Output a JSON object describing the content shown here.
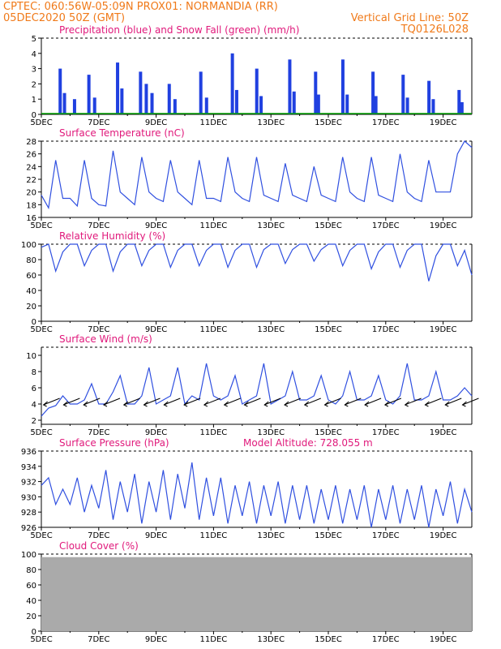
{
  "header": {
    "line1_left": "CPTEC:   060:56W-05:09N   PROX01: NORMANDIA (RR)",
    "line2_left": "05DEC2020 50Z (GMT)",
    "line2_right": "Vertical Grid Line: 50Z",
    "line3_right": "TQ0126L028"
  },
  "colors": {
    "header": "#f07a1a",
    "title": "#e0197b",
    "precip": "#2040e0",
    "snow": "#00a000",
    "line": "#3050e0",
    "wind_arrow": "#000000",
    "cloud": "#aaaaaa"
  },
  "x_axis": {
    "tick_labels": [
      "5DEC",
      "7DEC",
      "9DEC",
      "11DEC",
      "13DEC",
      "15DEC",
      "17DEC",
      "19DEC"
    ]
  },
  "panels": {
    "precip": {
      "title": "Precipitation (blue) and Snow Fall (green) (mm/h)",
      "y_ticks": [
        "0",
        "1",
        "2",
        "3",
        "4",
        "5"
      ]
    },
    "temp": {
      "title": "Surface Temperature (nC)",
      "y_ticks": [
        "16",
        "18",
        "20",
        "22",
        "24",
        "26",
        "28"
      ]
    },
    "rh": {
      "title": "Relative Humidity (%)",
      "y_ticks": [
        "0",
        "20",
        "40",
        "60",
        "80",
        "100"
      ]
    },
    "wind": {
      "title": "Surface Wind (m/s)",
      "y_ticks": [
        "2",
        "4",
        "6",
        "8",
        "10"
      ]
    },
    "pres": {
      "title": "Surface Pressure (hPa)",
      "extra": "Model Altitude: 728.055 m",
      "y_ticks": [
        "926",
        "928",
        "930",
        "932",
        "934",
        "936"
      ]
    },
    "cloud": {
      "title": "Cloud Cover (%)",
      "y_ticks": [
        "0",
        "20",
        "40",
        "60",
        "80",
        "100"
      ]
    }
  },
  "chart_data": [
    {
      "type": "bar",
      "title": "Precipitation (blue) and Snow Fall (green) (mm/h)",
      "x_unit": "days since 5DEC 00Z",
      "x": [
        0.6,
        0.75,
        1.1,
        1.6,
        1.8,
        2.6,
        2.75,
        3.4,
        3.6,
        3.8,
        4.4,
        4.6,
        5.5,
        5.7,
        6.6,
        6.75,
        7.45,
        7.6,
        8.6,
        8.75,
        9.5,
        9.6,
        10.45,
        10.6,
        11.5,
        11.6,
        12.55,
        12.7,
        13.45,
        13.6,
        14.5,
        14.6
      ],
      "values": [
        3.0,
        1.4,
        1.0,
        2.6,
        1.1,
        3.4,
        1.7,
        2.8,
        2.0,
        1.4,
        2.0,
        1.0,
        2.8,
        1.1,
        4.0,
        1.6,
        3.0,
        1.2,
        3.6,
        1.5,
        2.8,
        1.3,
        3.6,
        1.3,
        2.8,
        1.2,
        2.6,
        1.1,
        2.2,
        1.0,
        1.6,
        0.8
      ],
      "snow": 0,
      "ylim": [
        0,
        5
      ]
    },
    {
      "type": "line",
      "title": "Surface Temperature (nC)",
      "x_unit": "days since 5DEC 00Z",
      "x": [
        0,
        0.25,
        0.5,
        0.75,
        1,
        1.25,
        1.5,
        1.75,
        2,
        2.25,
        2.5,
        2.75,
        3,
        3.25,
        3.5,
        3.75,
        4,
        4.25,
        4.5,
        4.75,
        5,
        5.25,
        5.5,
        5.75,
        6,
        6.25,
        6.5,
        6.75,
        7,
        7.25,
        7.5,
        7.75,
        8,
        8.25,
        8.5,
        8.75,
        9,
        9.25,
        9.5,
        9.75,
        10,
        10.25,
        10.5,
        10.75,
        11,
        11.25,
        11.5,
        11.75,
        12,
        12.25,
        12.5,
        12.75,
        13,
        13.25,
        13.5,
        13.75,
        14,
        14.25,
        14.5,
        14.75,
        15
      ],
      "y": [
        19.5,
        17.5,
        25,
        19,
        19,
        17.8,
        25,
        19,
        18,
        17.8,
        26.5,
        20,
        19,
        18,
        25.5,
        20,
        19,
        18.5,
        25,
        20,
        19,
        18,
        25,
        19,
        19,
        18.5,
        25.5,
        20,
        19,
        18.5,
        25.5,
        19.5,
        19,
        18.5,
        24.5,
        19.5,
        19,
        18.5,
        24,
        19.5,
        19,
        18.5,
        25.5,
        20,
        19,
        18.5,
        25.5,
        19.5,
        19,
        18.5,
        26,
        20,
        19,
        18.5,
        25,
        20,
        20,
        20,
        26,
        28,
        27
      ],
      "ylim": [
        16,
        28
      ]
    },
    {
      "type": "line",
      "title": "Relative Humidity (%)",
      "x_unit": "days since 5DEC 00Z",
      "x": [
        0,
        0.25,
        0.5,
        0.75,
        1,
        1.25,
        1.5,
        1.75,
        2,
        2.25,
        2.5,
        2.75,
        3,
        3.25,
        3.5,
        3.75,
        4,
        4.25,
        4.5,
        4.75,
        5,
        5.25,
        5.5,
        5.75,
        6,
        6.25,
        6.5,
        6.75,
        7,
        7.25,
        7.5,
        7.75,
        8,
        8.25,
        8.5,
        8.75,
        9,
        9.25,
        9.5,
        9.75,
        10,
        10.25,
        10.5,
        10.75,
        11,
        11.25,
        11.5,
        11.75,
        12,
        12.25,
        12.5,
        12.75,
        13,
        13.25,
        13.5,
        13.75,
        14,
        14.25,
        14.5,
        14.75,
        15
      ],
      "y": [
        96,
        100,
        65,
        90,
        100,
        100,
        72,
        92,
        100,
        100,
        65,
        90,
        100,
        100,
        72,
        92,
        100,
        100,
        70,
        92,
        100,
        100,
        72,
        92,
        100,
        100,
        70,
        92,
        100,
        100,
        70,
        93,
        100,
        100,
        75,
        93,
        100,
        100,
        78,
        93,
        100,
        100,
        72,
        92,
        100,
        100,
        68,
        90,
        100,
        100,
        70,
        92,
        100,
        100,
        52,
        85,
        100,
        100,
        72,
        92,
        60
      ],
      "ylim": [
        0,
        100
      ]
    },
    {
      "type": "line",
      "title": "Surface Wind (m/s)",
      "x_unit": "days since 5DEC 00Z",
      "x": [
        0,
        0.25,
        0.5,
        0.75,
        1,
        1.25,
        1.5,
        1.75,
        2,
        2.25,
        2.5,
        2.75,
        3,
        3.25,
        3.5,
        3.75,
        4,
        4.25,
        4.5,
        4.75,
        5,
        5.25,
        5.5,
        5.75,
        6,
        6.25,
        6.5,
        6.75,
        7,
        7.25,
        7.5,
        7.75,
        8,
        8.25,
        8.5,
        8.75,
        9,
        9.25,
        9.5,
        9.75,
        10,
        10.25,
        10.5,
        10.75,
        11,
        11.25,
        11.5,
        11.75,
        12,
        12.25,
        12.5,
        12.75,
        13,
        13.25,
        13.5,
        13.75,
        14,
        14.25,
        14.5,
        14.75,
        15
      ],
      "y": [
        2.5,
        3.5,
        3.8,
        5,
        4,
        4,
        4.5,
        6.5,
        4,
        4,
        5.5,
        7.5,
        4,
        4,
        5,
        8.5,
        4,
        4.5,
        5,
        8.5,
        4,
        5,
        4.5,
        9,
        5,
        4.5,
        5,
        7.5,
        4,
        4.5,
        5,
        9,
        4,
        4.5,
        5,
        8,
        4.5,
        4.5,
        5,
        7.5,
        4.5,
        4,
        5,
        8,
        4.5,
        4.5,
        5,
        7.5,
        4.5,
        4,
        5,
        9,
        4.5,
        4.5,
        5,
        8,
        4.5,
        4.5,
        5,
        6,
        5
      ],
      "ylim": [
        1.5,
        11
      ],
      "arrows_x": [
        0.3,
        1.0,
        1.7,
        2.4,
        3.1,
        3.8,
        4.5,
        5.2,
        5.9,
        6.6,
        7.3,
        8.0,
        8.7,
        9.4,
        10.1,
        10.8,
        11.5,
        12.2,
        12.9,
        13.6,
        14.3,
        14.9
      ]
    },
    {
      "type": "line",
      "title": "Surface Pressure (hPa)",
      "x_unit": "days since 5DEC 00Z",
      "x": [
        0,
        0.25,
        0.5,
        0.75,
        1,
        1.25,
        1.5,
        1.75,
        2,
        2.25,
        2.5,
        2.75,
        3,
        3.25,
        3.5,
        3.75,
        4,
        4.25,
        4.5,
        4.75,
        5,
        5.25,
        5.5,
        5.75,
        6,
        6.25,
        6.5,
        6.75,
        7,
        7.25,
        7.5,
        7.75,
        8,
        8.25,
        8.5,
        8.75,
        9,
        9.25,
        9.5,
        9.75,
        10,
        10.25,
        10.5,
        10.75,
        11,
        11.25,
        11.5,
        11.75,
        12,
        12.25,
        12.5,
        12.75,
        13,
        13.25,
        13.5,
        13.75,
        14,
        14.25,
        14.5,
        14.75,
        15
      ],
      "y": [
        931.5,
        932.5,
        929,
        931,
        929,
        932.5,
        928,
        931.5,
        928.5,
        933.5,
        927,
        932,
        928,
        933,
        926.5,
        932,
        928,
        933.5,
        927,
        933,
        928.5,
        934.5,
        927,
        932.5,
        927.5,
        932.5,
        926.5,
        931.5,
        927.5,
        932,
        926.5,
        931.5,
        927.5,
        932,
        926.5,
        931.5,
        927,
        931.5,
        926.5,
        931,
        927,
        931.5,
        926.5,
        931,
        927,
        931.5,
        926,
        931,
        927,
        931.5,
        926.5,
        931,
        927,
        931.5,
        926,
        931,
        927.5,
        932,
        926.5,
        931,
        928
      ],
      "ylim": [
        926,
        936
      ]
    },
    {
      "type": "area",
      "title": "Cloud Cover (%)",
      "x_unit": "days since 5DEC 00Z",
      "x": [
        0,
        15
      ],
      "y": [
        96,
        96
      ],
      "ylim": [
        0,
        100
      ]
    }
  ]
}
